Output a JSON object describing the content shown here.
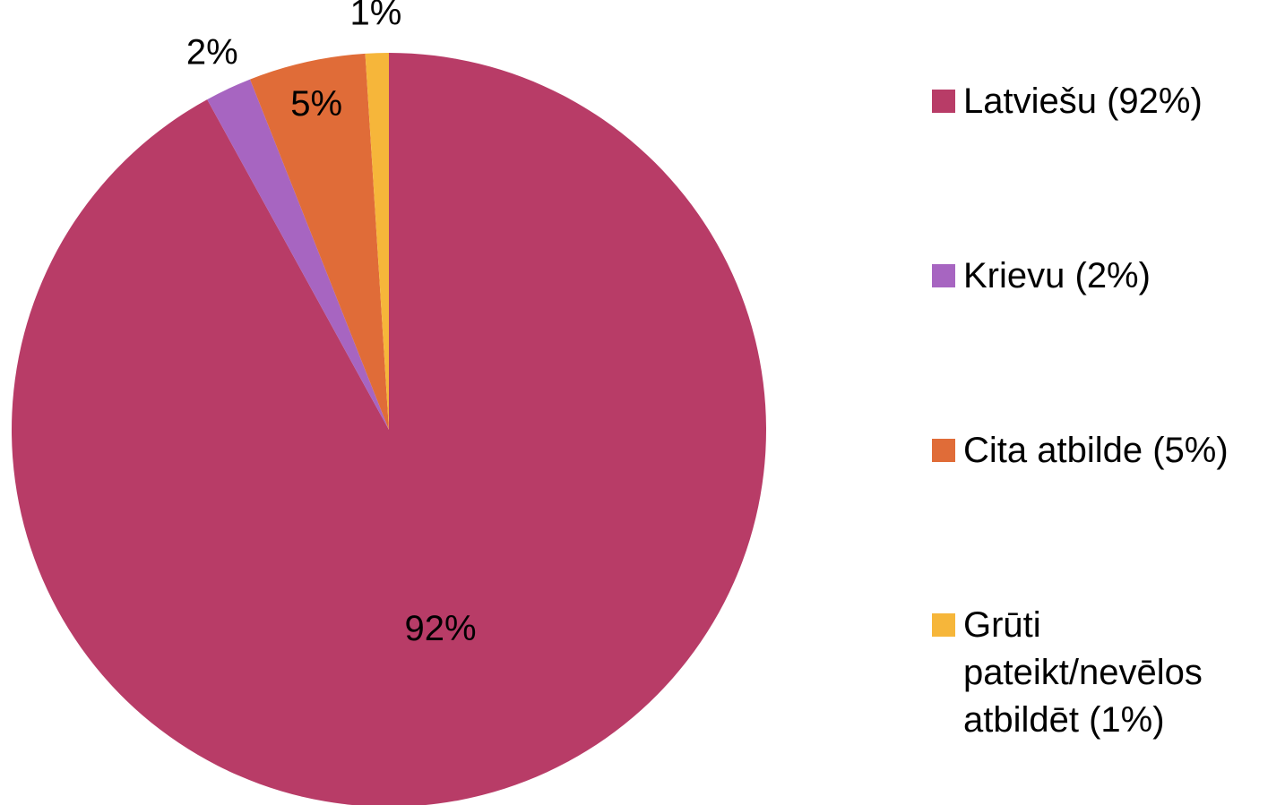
{
  "chart_data": {
    "type": "pie",
    "categories": [
      "Latviešu (92%)",
      "Krievu (2%)",
      "Cita atbilde (5%)",
      "Grūti pateikt/nevēlos atbildēt (1%)"
    ],
    "values": [
      92,
      2,
      5,
      1
    ],
    "value_labels": [
      "92%",
      "2%",
      "5%",
      "1%"
    ],
    "colors": [
      "#b83c67",
      "#a765c1",
      "#e06c38",
      "#f6b63a"
    ],
    "legend": "right"
  }
}
